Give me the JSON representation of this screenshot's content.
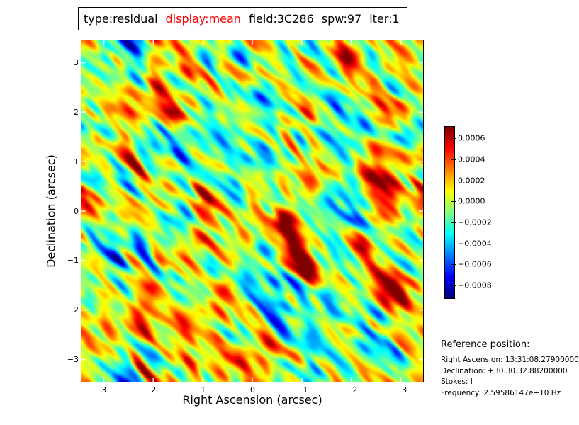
{
  "chart_data": {
    "type": "heatmap",
    "description": "Interferometric residual noise image (jet colormap) with diagonal streak texture",
    "title_segments": [
      {
        "text": "type:residual",
        "color": "#000000"
      },
      {
        "text": "display:mean",
        "color": "#ff0000"
      },
      {
        "text": "field:3C286",
        "color": "#000000"
      },
      {
        "text": "spw:97",
        "color": "#000000"
      },
      {
        "text": "iter:1",
        "color": "#000000"
      }
    ],
    "xlabel": "Right Ascension (arcsec)",
    "ylabel": "Declination (arcsec)",
    "x_tick_labels": [
      "3",
      "2",
      "1",
      "0",
      "−1",
      "−2",
      "−3"
    ],
    "x_tick_values": [
      3,
      2,
      1,
      0,
      -1,
      -2,
      -3
    ],
    "y_tick_labels": [
      "3",
      "2",
      "1",
      "0",
      "−1",
      "−2",
      "−3"
    ],
    "y_tick_values": [
      3,
      2,
      1,
      0,
      -1,
      -2,
      -3
    ],
    "xlim": [
      3.45,
      -3.45
    ],
    "ylim": [
      -3.45,
      3.45
    ],
    "grid": false,
    "colormap": "jet",
    "colorbar": {
      "position": "right",
      "tick_labels": [
        "0.0006",
        "0.0004",
        "0.0002",
        "0.0000",
        "−0.0002",
        "−0.0004",
        "−0.0006",
        "−0.0008"
      ],
      "tick_values": [
        0.0006,
        0.0004,
        0.0002,
        0.0,
        -0.0002,
        -0.0004,
        -0.0006,
        -0.0008
      ],
      "vmin": -0.00092,
      "vmax": 0.00071
    }
  },
  "reference": {
    "heading": "Reference position:",
    "lines": [
      "Right Ascension: 13:31:08.27900000",
      "Declination: +30.30.32.88200000",
      "Stokes: I",
      "Frequency: 2.59586147e+10 Hz"
    ]
  }
}
